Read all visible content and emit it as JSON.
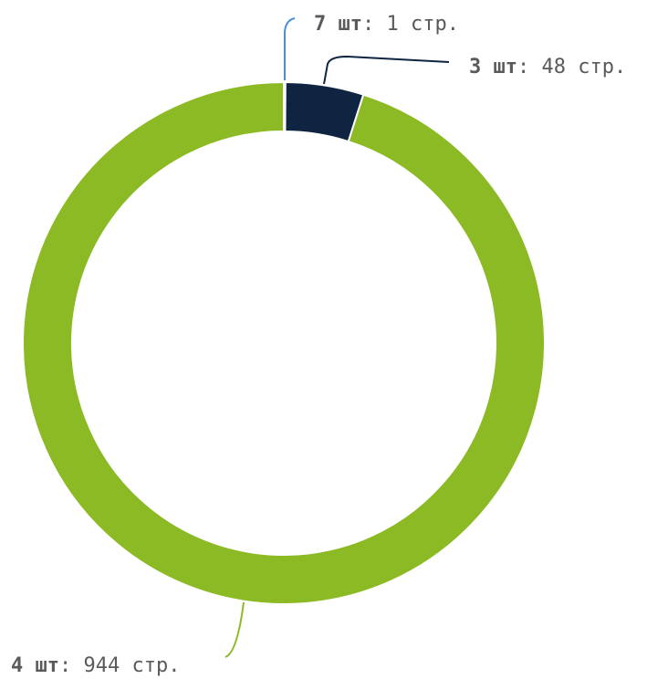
{
  "chart_data": {
    "type": "pie",
    "donut": true,
    "title": "",
    "slices": [
      {
        "label": "7 шт",
        "value": 1,
        "value_text": "1 стр.",
        "color": "#4a90d9"
      },
      {
        "label": "3 шт",
        "value": 48,
        "value_text": "48 стр.",
        "color": "#0f2440"
      },
      {
        "label": "4 шт",
        "value": 944,
        "value_text": "944 стр.",
        "color": "#8bba24"
      }
    ],
    "label_separator": ": ",
    "legend": "none"
  }
}
